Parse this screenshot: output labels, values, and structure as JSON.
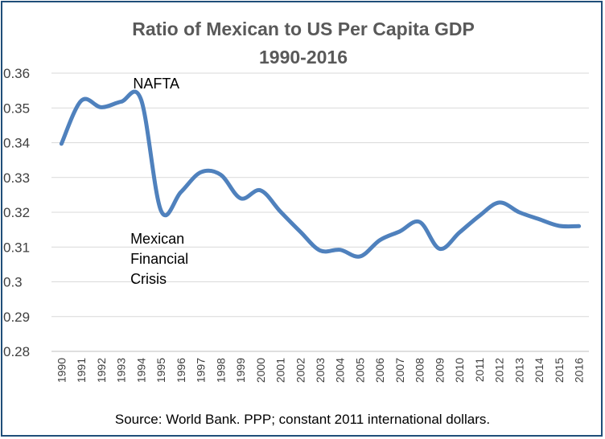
{
  "chart_data": {
    "type": "line",
    "title": "Ratio of Mexican to US Per Capita GDP",
    "subtitle": "1990-2016",
    "xlabel": "",
    "ylabel": "",
    "ylim": [
      0.28,
      0.36
    ],
    "y_ticks": [
      "0.28",
      "0.29",
      "0.3",
      "0.31",
      "0.32",
      "0.33",
      "0.34",
      "0.35",
      "0.36"
    ],
    "grid": true,
    "legend": "none",
    "categories": [
      "1990",
      "1991",
      "1992",
      "1993",
      "1994",
      "1995",
      "1996",
      "1997",
      "1998",
      "1999",
      "2000",
      "2001",
      "2002",
      "2003",
      "2004",
      "2005",
      "2006",
      "2007",
      "2008",
      "2009",
      "2010",
      "2011",
      "2012",
      "2013",
      "2014",
      "2015",
      "2016"
    ],
    "series": [
      {
        "color": "#4f81bd",
        "values": [
          0.3397,
          0.3521,
          0.3502,
          0.3518,
          0.3524,
          0.3205,
          0.3258,
          0.3315,
          0.3308,
          0.324,
          0.3263,
          0.3202,
          0.3144,
          0.309,
          0.3092,
          0.3073,
          0.312,
          0.3145,
          0.3172,
          0.3095,
          0.3142,
          0.319,
          0.3228,
          0.32,
          0.318,
          0.3161,
          0.316
        ]
      }
    ],
    "annotations": [
      {
        "text": "NAFTA",
        "year": "1994"
      },
      {
        "text": "Mexican\nFinancial\nCrisis",
        "year": "1995"
      }
    ],
    "source": "Source: World Bank.  PPP; constant 2011 international dollars."
  }
}
